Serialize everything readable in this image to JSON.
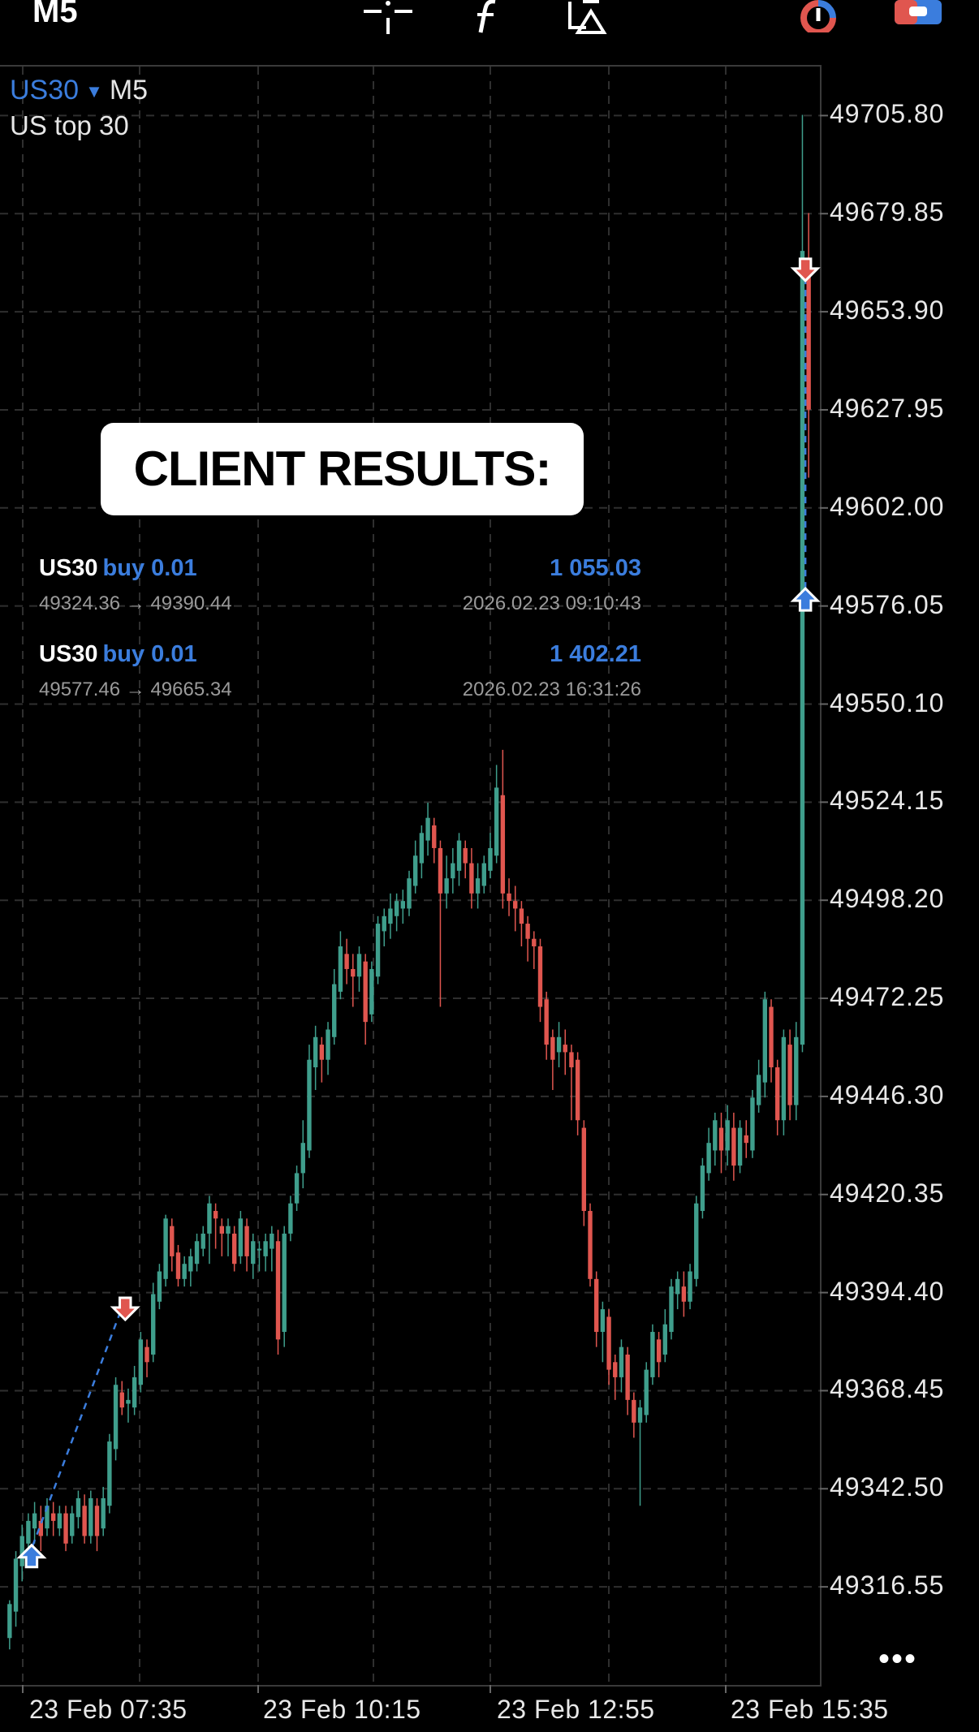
{
  "toolbar": {
    "timeframe": "M5",
    "icons": [
      "crosshair-icon",
      "function-icon",
      "objects-icon",
      "timeframe-toggle-icon",
      "trade-panel-icon"
    ]
  },
  "chart_header": {
    "symbol": "US30",
    "timeframe": "M5",
    "description": "US top 30"
  },
  "banner": {
    "text": "CLIENT RESULTS:"
  },
  "trades": [
    {
      "symbol": "US30",
      "side": "buy 0.01",
      "profit": "1 055.03",
      "prices": "49324.36 → 49390.44",
      "time": "2026.02.23 09:10:43"
    },
    {
      "symbol": "US30",
      "side": "buy 0.01",
      "profit": "1 402.21",
      "prices": "49577.46 → 49665.34",
      "time": "2026.02.23 16:31:26"
    }
  ],
  "more_label": "•••",
  "colors": {
    "bull": "#3f9e8c",
    "bear": "#e0564f",
    "accent": "#3b7ddd",
    "grid": "#2f2f2f"
  },
  "chart_data": {
    "type": "candlestick",
    "y_ticks": [
      "49705.80",
      "49679.85",
      "49653.90",
      "49627.95",
      "49602.00",
      "49576.05",
      "49550.10",
      "49524.15",
      "49498.20",
      "49472.25",
      "49446.30",
      "49420.35",
      "49394.40",
      "49368.45",
      "49342.50",
      "49316.55"
    ],
    "x_ticks": [
      "23 Feb 07:35",
      "23 Feb 10:15",
      "23 Feb 12:55",
      "23 Feb 15:35"
    ],
    "ylim": [
      49290.6,
      49718.77
    ],
    "candles": [
      [
        49303,
        49312,
        49300,
        49313
      ],
      [
        49310,
        49324,
        49306,
        49326
      ],
      [
        49322,
        49330,
        49318,
        49333
      ],
      [
        49328,
        49334,
        49324,
        49336
      ],
      [
        49332,
        49336,
        49328,
        49339
      ],
      [
        49334,
        49330,
        49326,
        49338
      ],
      [
        49332,
        49338,
        49330,
        49340
      ],
      [
        49336,
        49334,
        49330,
        49339
      ],
      [
        49332,
        49336,
        49330,
        49338
      ],
      [
        49336,
        49328,
        49326,
        49338
      ],
      [
        49330,
        49336,
        49328,
        49338
      ],
      [
        49335,
        49340,
        49332,
        49342
      ],
      [
        49338,
        49330,
        49328,
        49341
      ],
      [
        49330,
        49340,
        49328,
        49342
      ],
      [
        49338,
        49330,
        49326,
        49340
      ],
      [
        49332,
        49340,
        49330,
        49343
      ],
      [
        49338,
        49355,
        49336,
        49357
      ],
      [
        49353,
        49370,
        49350,
        49372
      ],
      [
        49368,
        49364,
        49362,
        49371
      ],
      [
        49365,
        49366,
        49360,
        49369
      ],
      [
        49364,
        49372,
        49362,
        49375
      ],
      [
        49370,
        49382,
        49368,
        49384
      ],
      [
        49380,
        49376,
        49372,
        49382
      ],
      [
        49378,
        49394,
        49376,
        49397
      ],
      [
        49392,
        49400,
        49390,
        49402
      ],
      [
        49398,
        49414,
        49396,
        49415
      ],
      [
        49412,
        49404,
        49400,
        49414
      ],
      [
        49405,
        49398,
        49396,
        49407
      ],
      [
        49398,
        49402,
        49396,
        49404
      ],
      [
        49400,
        49404,
        49396,
        49406
      ],
      [
        49402,
        49408,
        49400,
        49410
      ],
      [
        49406,
        49410,
        49404,
        49412
      ],
      [
        49410,
        49418,
        49402,
        49420
      ],
      [
        49416,
        49414,
        49406,
        49418
      ],
      [
        49412,
        49410,
        49404,
        49414
      ],
      [
        49410,
        49412,
        49404,
        49414
      ],
      [
        49410,
        49402,
        49400,
        49412
      ],
      [
        49404,
        49414,
        49402,
        49416
      ],
      [
        49412,
        49404,
        49400,
        49414
      ],
      [
        49402,
        49408,
        49398,
        49410
      ],
      [
        49406,
        49406,
        49400,
        49408
      ],
      [
        49404,
        49408,
        49400,
        49410
      ],
      [
        49406,
        49410,
        49400,
        49412
      ],
      [
        49408,
        49382,
        49378,
        49411
      ],
      [
        49384,
        49410,
        49380,
        49412
      ],
      [
        49410,
        49418,
        49408,
        49420
      ],
      [
        49418,
        49426,
        49416,
        49428
      ],
      [
        49426,
        49434,
        49422,
        49440
      ],
      [
        49432,
        49456,
        49430,
        49460
      ],
      [
        49454,
        49462,
        49448,
        49465
      ],
      [
        49460,
        49456,
        49450,
        49462
      ],
      [
        49456,
        49464,
        49452,
        49466
      ],
      [
        49462,
        49476,
        49460,
        49480
      ],
      [
        49474,
        49486,
        49472,
        49490
      ],
      [
        49484,
        49480,
        49476,
        49488
      ],
      [
        49480,
        49478,
        49470,
        49484
      ],
      [
        49478,
        49484,
        49474,
        49486
      ],
      [
        49482,
        49466,
        49460,
        49484
      ],
      [
        49468,
        49480,
        49466,
        49482
      ],
      [
        49478,
        49492,
        49476,
        49494
      ],
      [
        49490,
        49494,
        49486,
        49496
      ],
      [
        49492,
        49496,
        49488,
        49500
      ],
      [
        49494,
        49498,
        49490,
        49500
      ],
      [
        49496,
        49498,
        49492,
        49501
      ],
      [
        49496,
        49504,
        49494,
        49506
      ],
      [
        49502,
        49510,
        49500,
        49514
      ],
      [
        49508,
        49516,
        49504,
        49518
      ],
      [
        49514,
        49520,
        49510,
        49524
      ],
      [
        49518,
        49512,
        49508,
        49520
      ],
      [
        49512,
        49500,
        49470,
        49514
      ],
      [
        49500,
        49504,
        49496,
        49510
      ],
      [
        49504,
        49508,
        49500,
        49512
      ],
      [
        49506,
        49514,
        49502,
        49516
      ],
      [
        49512,
        49508,
        49504,
        49514
      ],
      [
        49508,
        49500,
        49496,
        49512
      ],
      [
        49500,
        49504,
        49496,
        49508
      ],
      [
        49502,
        49508,
        49500,
        49510
      ],
      [
        49506,
        49512,
        49504,
        49516
      ],
      [
        49510,
        49528,
        49508,
        49534
      ],
      [
        49526,
        49500,
        49496,
        49538
      ],
      [
        49500,
        49498,
        49494,
        49504
      ],
      [
        49498,
        49496,
        49490,
        49502
      ],
      [
        49496,
        49492,
        49486,
        49498
      ],
      [
        49492,
        49488,
        49482,
        49494
      ],
      [
        49488,
        49486,
        49480,
        49490
      ],
      [
        49486,
        49470,
        49466,
        49488
      ],
      [
        49472,
        49460,
        49456,
        49474
      ],
      [
        49462,
        49456,
        49448,
        49464
      ],
      [
        49458,
        49462,
        49454,
        49466
      ],
      [
        49460,
        49458,
        49452,
        49464
      ],
      [
        49458,
        49454,
        49440,
        49460
      ],
      [
        49456,
        49440,
        49436,
        49458
      ],
      [
        49438,
        49416,
        49412,
        49440
      ],
      [
        49416,
        49398,
        49396,
        49418
      ],
      [
        49398,
        49384,
        49380,
        49400
      ],
      [
        49384,
        49390,
        49376,
        49392
      ],
      [
        49388,
        49374,
        49370,
        49390
      ],
      [
        49376,
        49372,
        49366,
        49378
      ],
      [
        49372,
        49380,
        49368,
        49382
      ],
      [
        49378,
        49366,
        49362,
        49380
      ],
      [
        49366,
        49360,
        49356,
        49368
      ],
      [
        49360,
        49364,
        49338,
        49366
      ],
      [
        49362,
        49374,
        49360,
        49376
      ],
      [
        49372,
        49384,
        49370,
        49386
      ],
      [
        49382,
        49376,
        49372,
        49384
      ],
      [
        49378,
        49386,
        49376,
        49390
      ],
      [
        49384,
        49396,
        49382,
        49398
      ],
      [
        49394,
        49398,
        49390,
        49400
      ],
      [
        49396,
        49392,
        49388,
        49400
      ],
      [
        49392,
        49400,
        49390,
        49402
      ],
      [
        49398,
        49418,
        49396,
        49420
      ],
      [
        49416,
        49428,
        49414,
        49430
      ],
      [
        49426,
        49434,
        49424,
        49438
      ],
      [
        49432,
        49440,
        49428,
        49442
      ],
      [
        49438,
        49432,
        49426,
        49442
      ],
      [
        49432,
        49440,
        49428,
        49444
      ],
      [
        49438,
        49428,
        49424,
        49442
      ],
      [
        49428,
        49438,
        49426,
        49440
      ],
      [
        49436,
        49434,
        49430,
        49440
      ],
      [
        49432,
        49446,
        49430,
        49448
      ],
      [
        49444,
        49452,
        49442,
        49456
      ],
      [
        49450,
        49472,
        49446,
        49474
      ],
      [
        49470,
        49454,
        49450,
        49472
      ],
      [
        49454,
        49440,
        49436,
        49456
      ],
      [
        49440,
        49462,
        49436,
        49464
      ],
      [
        49460,
        49444,
        49440,
        49464
      ],
      [
        49444,
        49462,
        49440,
        49466
      ],
      [
        49460,
        49670,
        49458,
        49706
      ],
      [
        49668,
        49628,
        49610,
        49680
      ]
    ]
  }
}
